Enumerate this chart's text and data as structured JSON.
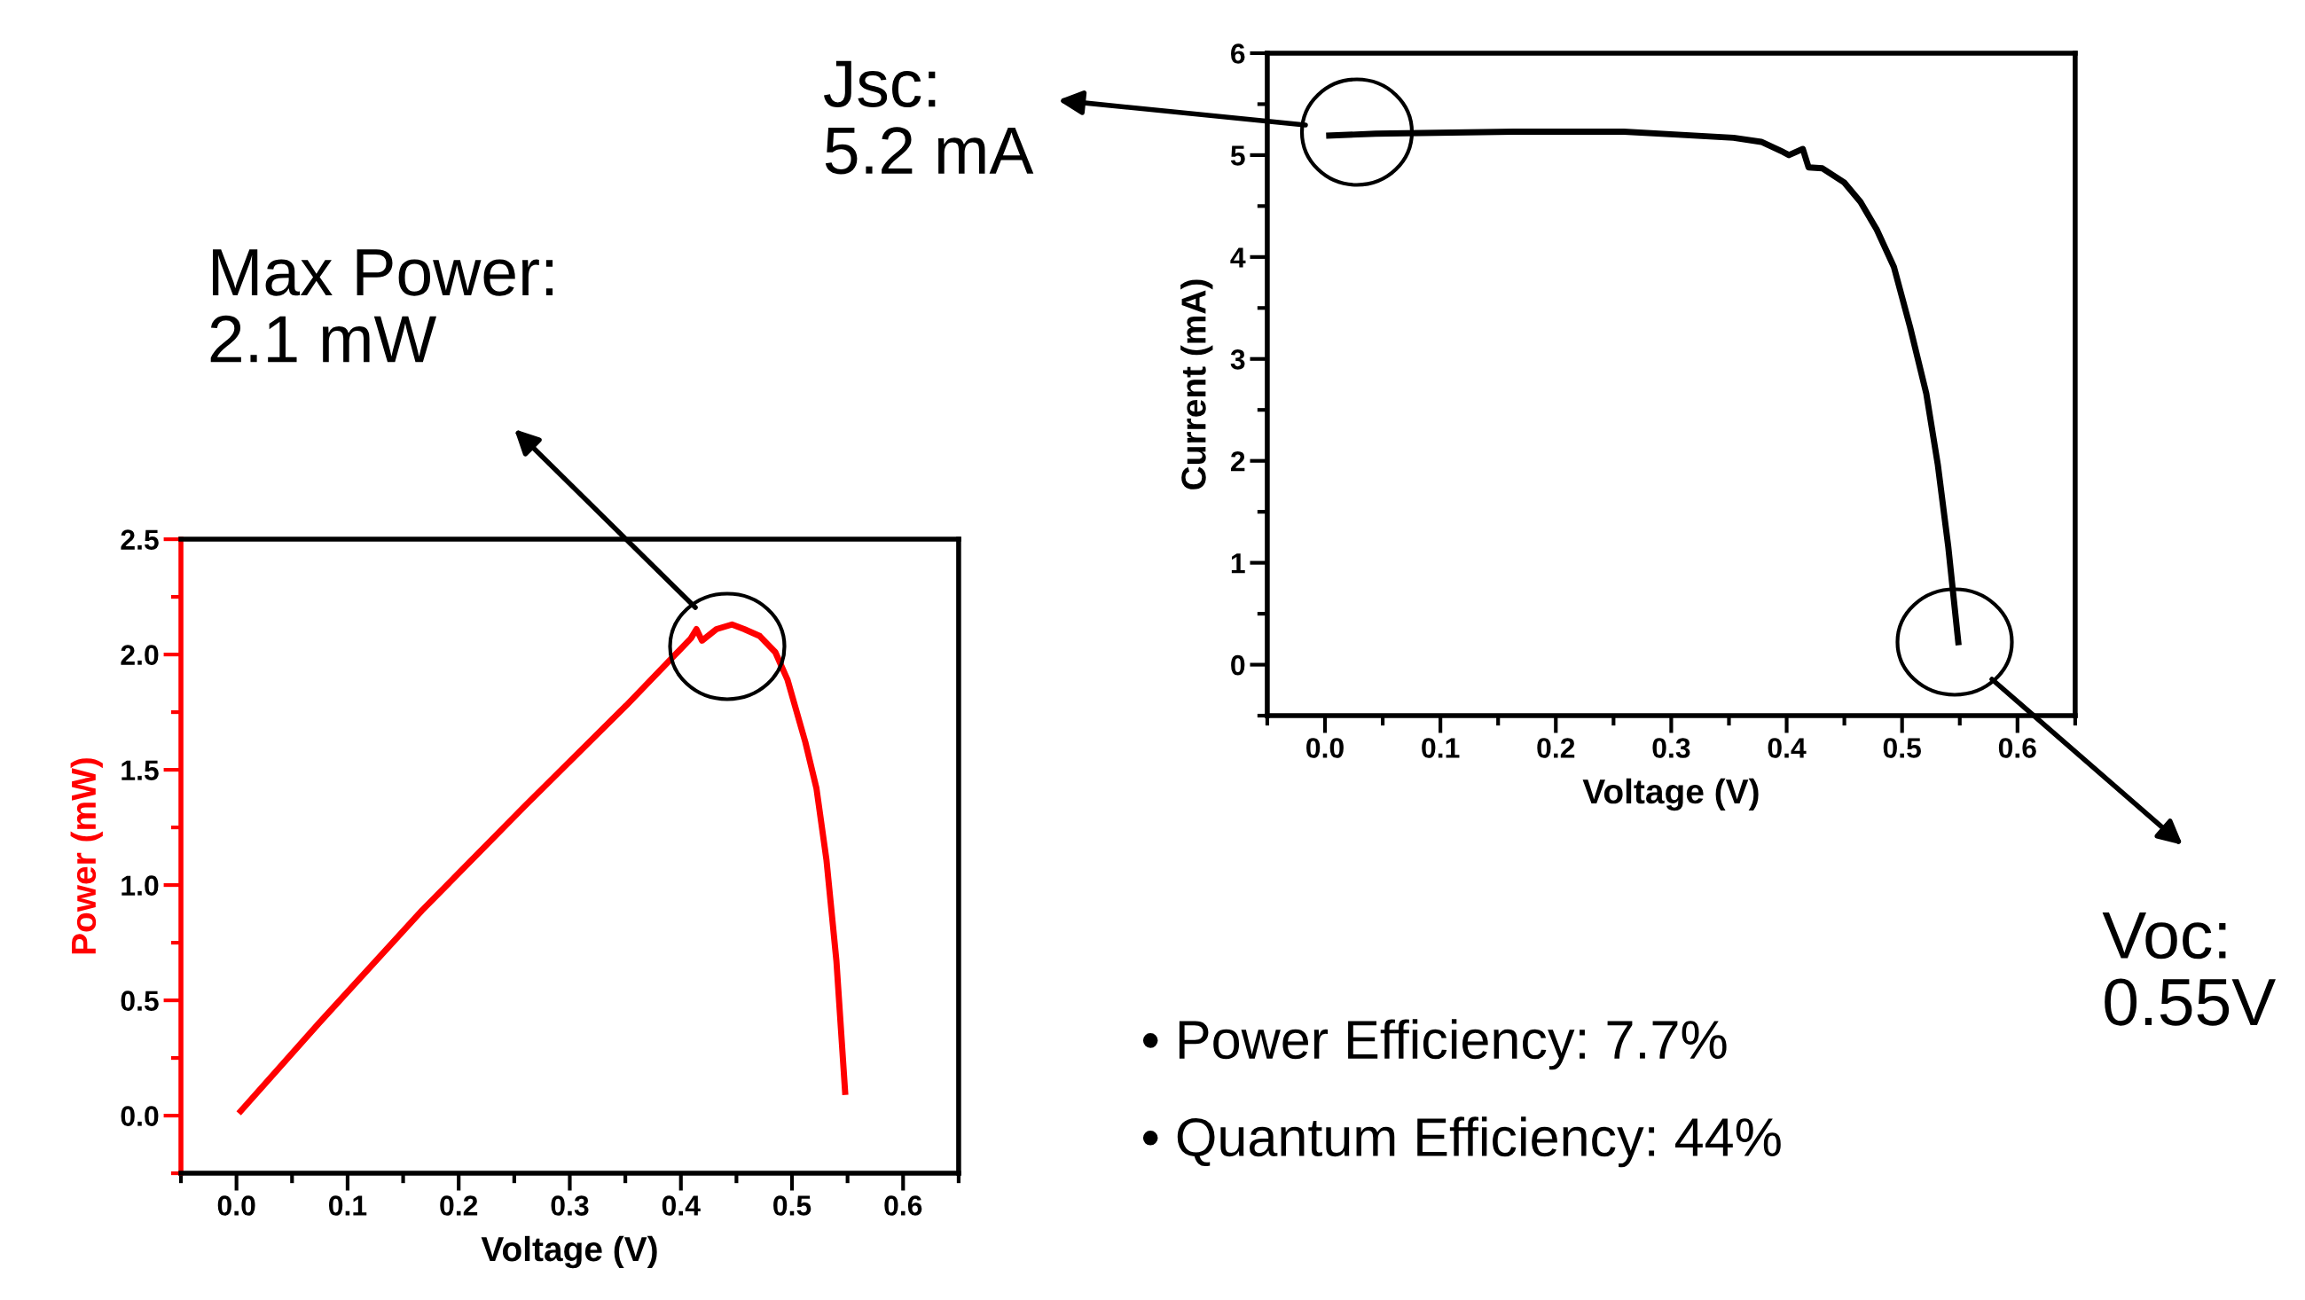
{
  "chart_data": [
    {
      "type": "line",
      "xlabel": "Voltage (V)",
      "ylabel": "Power (mW)",
      "xlim": [
        -0.05,
        0.65
      ],
      "ylim": [
        -0.25,
        2.5
      ],
      "xticks": [
        {
          "value": 0,
          "label": "0.0"
        },
        0.1,
        0.2,
        0.3,
        0.4,
        0.5,
        0.6
      ],
      "yticks": [
        {
          "value": 0,
          "label": "0.0"
        },
        0.5,
        {
          "value": 1,
          "label": "1.0"
        },
        1.5,
        {
          "value": 2,
          "label": "2.0"
        },
        2.5
      ],
      "grid": false,
      "series": [
        {
          "color": "#ff0000",
          "x": [
            0.002,
            0.074,
            0.167,
            0.259,
            0.351,
            0.397,
            0.409,
            0.414,
            0.419,
            0.432,
            0.446,
            0.457,
            0.471,
            0.485,
            0.496,
            0.512,
            0.522,
            0.531,
            0.54,
            0.548
          ],
          "values": [
            0.01,
            0.4,
            0.89,
            1.34,
            1.78,
            2.01,
            2.07,
            2.11,
            2.06,
            2.11,
            2.13,
            2.11,
            2.08,
            2.01,
            1.89,
            1.62,
            1.42,
            1.11,
            0.67,
            0.09
          ]
        }
      ],
      "annotations": [
        "Max Power:\n2.1 mW"
      ]
    },
    {
      "type": "line",
      "xlabel": "Voltage (V)",
      "ylabel": "Current (mA)",
      "xlim": [
        -0.05,
        0.65
      ],
      "ylim": [
        -0.5,
        6
      ],
      "xticks": [
        {
          "value": 0,
          "label": "0.0"
        },
        0.1,
        0.2,
        0.3,
        0.4,
        0.5,
        0.6
      ],
      "yticks": [
        0,
        1,
        2,
        3,
        4,
        5,
        6
      ],
      "grid": false,
      "series": [
        {
          "color": "#000000",
          "x": [
            0.001,
            0.044,
            0.163,
            0.259,
            0.306,
            0.354,
            0.378,
            0.397,
            0.402,
            0.414,
            0.419,
            0.431,
            0.45,
            0.464,
            0.478,
            0.493,
            0.507,
            0.521,
            0.531,
            0.54,
            0.549
          ],
          "values": [
            5.19,
            5.21,
            5.23,
            5.23,
            5.2,
            5.17,
            5.13,
            5.03,
            5.0,
            5.06,
            4.88,
            4.87,
            4.73,
            4.54,
            4.27,
            3.9,
            3.31,
            2.66,
            1.96,
            1.16,
            0.19
          ]
        }
      ],
      "annotations": [
        "Jsc:\n5.2 mA",
        "Voc:\n0.55V",
        "• Power Efficiency: 7.7%",
        "• Quantum Efficiency: 44%"
      ]
    }
  ]
}
